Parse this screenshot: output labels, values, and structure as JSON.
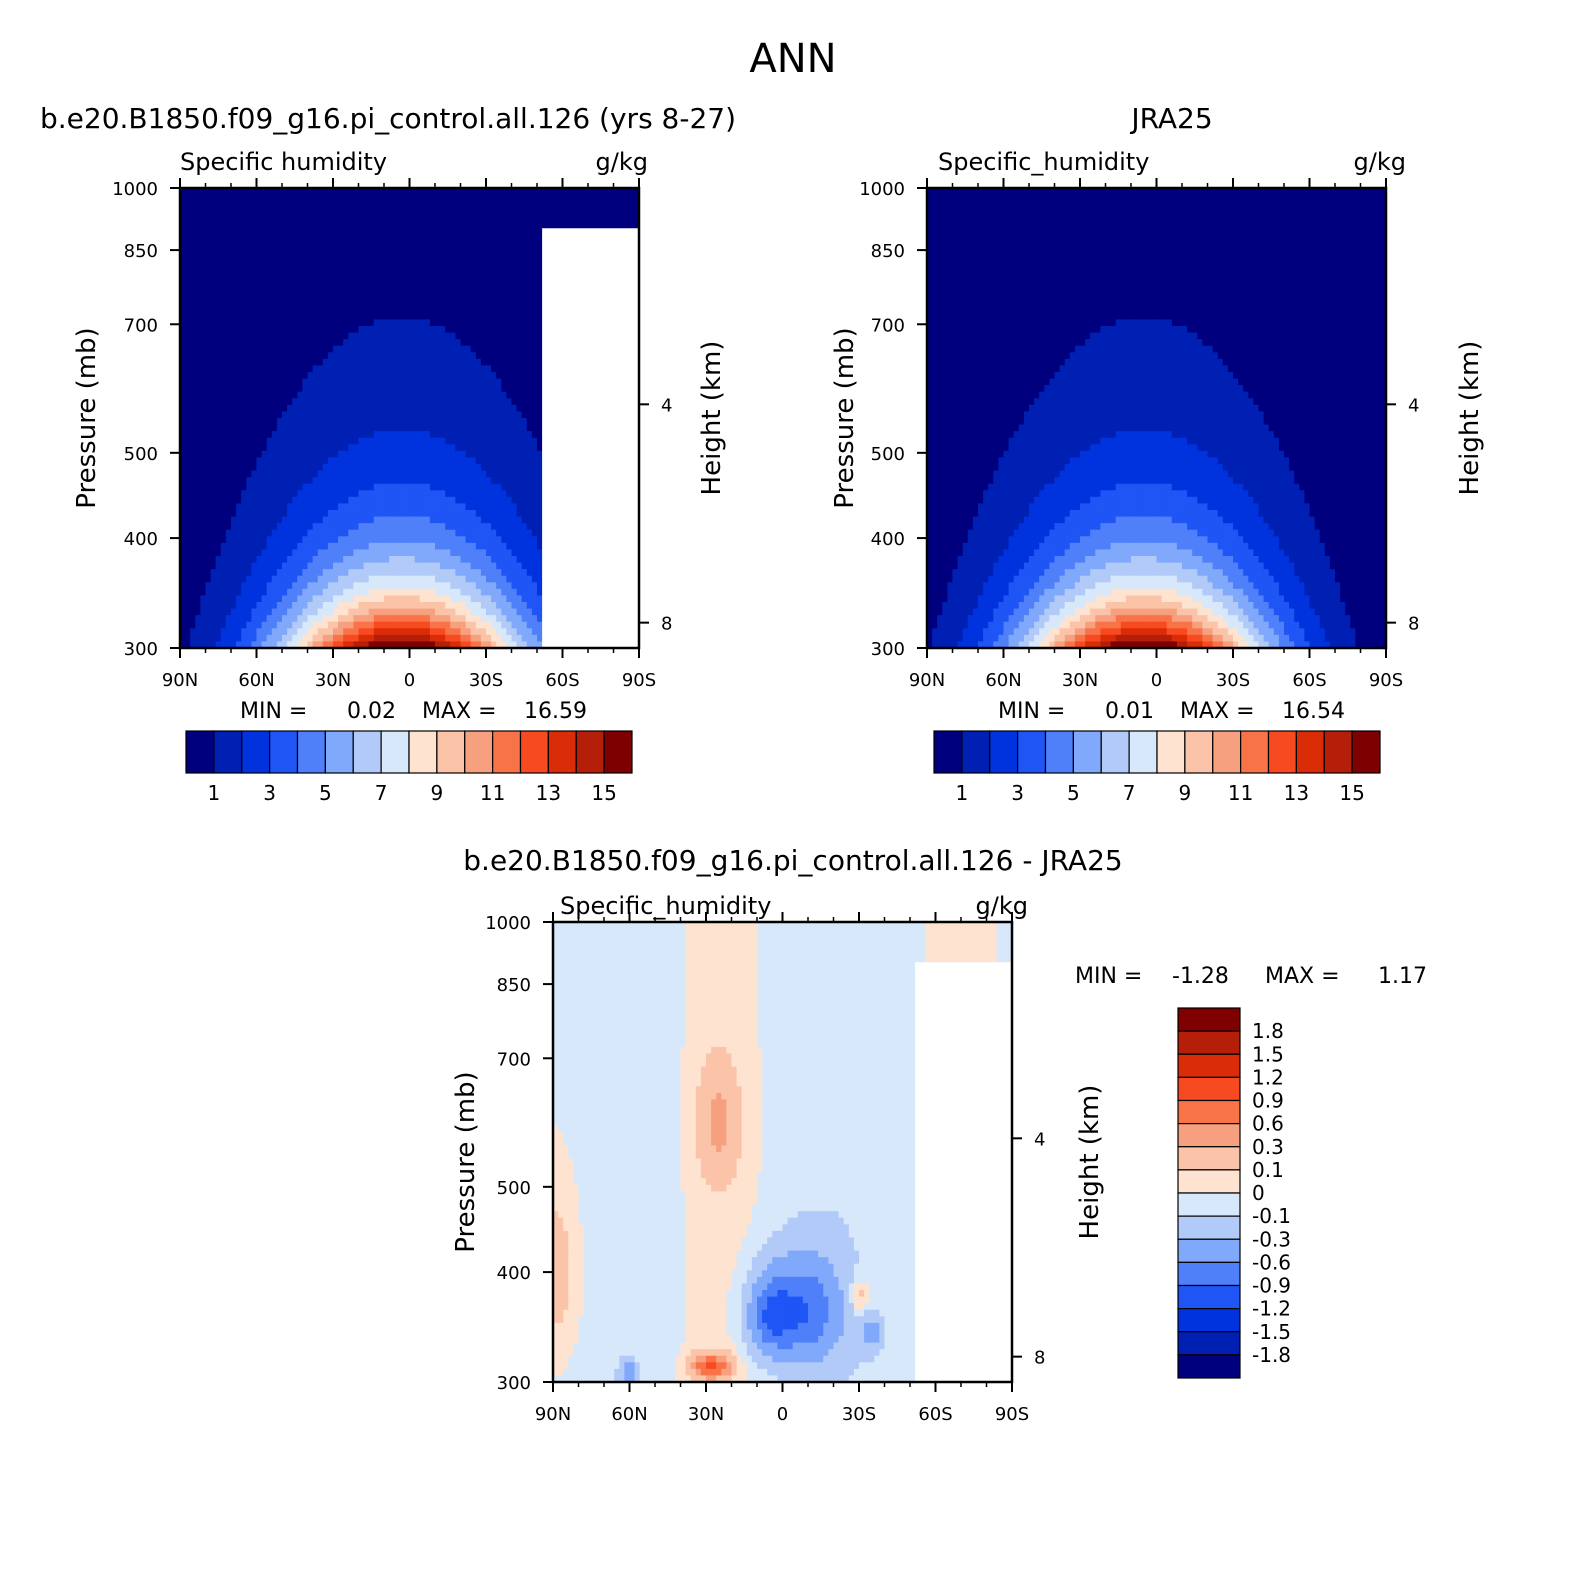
{
  "figure": {
    "main_title": "ANN",
    "palette": [
      "#00007f",
      "#0020b4",
      "#0033dd",
      "#1f55f5",
      "#4f80fa",
      "#80a8fb",
      "#b2caf8",
      "#d7e8fa",
      "#fde3d0",
      "#fbc4a8",
      "#f7a080",
      "#f87448",
      "#f74a20",
      "#db2c08",
      "#b51e08",
      "#7f0000"
    ]
  },
  "chart_data": [
    {
      "type": "contour",
      "id": "model",
      "title": "b.e20.B1850.f09_g16.pi_control.all.126 (yrs 8-27)",
      "variable": "Specific humidity",
      "units": "g/kg",
      "ylabel": "Pressure (mb)",
      "y2label": "Height (km)",
      "x_ticks": [
        "90N",
        "60N",
        "30N",
        "0",
        "30S",
        "60S",
        "90S"
      ],
      "y_ticks": [
        "300",
        "400",
        "500",
        "700",
        "850",
        "1000"
      ],
      "y2_ticks": [
        "8",
        "4"
      ],
      "xlim": [
        -90,
        90
      ],
      "ylim": [
        1000,
        300
      ],
      "y_scale": "log",
      "stats": {
        "min_label": "MIN =",
        "min": "0.02",
        "max_label": "MAX =",
        "max": "16.59"
      },
      "colorbar": {
        "orientation": "horizontal",
        "levels": [
          1,
          2,
          3,
          4,
          5,
          6,
          7,
          8,
          9,
          10,
          11,
          12,
          13,
          14,
          15
        ],
        "tick_labels": [
          "1",
          "3",
          "5",
          "7",
          "9",
          "11",
          "13",
          "15"
        ]
      },
      "peak": 16.59,
      "missing_below_right": true
    },
    {
      "type": "contour",
      "id": "obs",
      "title": "JRA25",
      "variable": "Specific_humidity",
      "units": "g/kg",
      "ylabel": "Pressure (mb)",
      "y2label": "Height (km)",
      "x_ticks": [
        "90N",
        "60N",
        "30N",
        "0",
        "30S",
        "60S",
        "90S"
      ],
      "y_ticks": [
        "300",
        "400",
        "500",
        "700",
        "850",
        "1000"
      ],
      "y2_ticks": [
        "8",
        "4"
      ],
      "xlim": [
        -90,
        90
      ],
      "ylim": [
        1000,
        300
      ],
      "y_scale": "log",
      "stats": {
        "min_label": "MIN =",
        "min": "0.01",
        "max_label": "MAX =",
        "max": "16.54"
      },
      "colorbar": {
        "orientation": "horizontal",
        "levels": [
          1,
          2,
          3,
          4,
          5,
          6,
          7,
          8,
          9,
          10,
          11,
          12,
          13,
          14,
          15
        ],
        "tick_labels": [
          "1",
          "3",
          "5",
          "7",
          "9",
          "11",
          "13",
          "15"
        ]
      },
      "peak": 16.54
    },
    {
      "type": "contour",
      "id": "diff",
      "title": "b.e20.B1850.f09_g16.pi_control.all.126 - JRA25",
      "variable": "Specific_humidity",
      "units": "g/kg",
      "ylabel": "Pressure (mb)",
      "y2label": "Height (km)",
      "x_ticks": [
        "90N",
        "60N",
        "30N",
        "0",
        "30S",
        "60S",
        "90S"
      ],
      "y_ticks": [
        "300",
        "400",
        "500",
        "700",
        "850",
        "1000"
      ],
      "y2_ticks": [
        "8",
        "4"
      ],
      "xlim": [
        -90,
        90
      ],
      "ylim": [
        1000,
        300
      ],
      "y_scale": "log",
      "stats": {
        "min_label": "MIN =",
        "min": "-1.28",
        "max_label": "MAX =",
        "max": "1.17"
      },
      "colorbar": {
        "orientation": "vertical",
        "levels": [
          -1.8,
          -1.5,
          -1.2,
          -0.9,
          -0.6,
          -0.3,
          -0.1,
          0,
          0.1,
          0.3,
          0.6,
          0.9,
          1.2,
          1.5,
          1.8
        ],
        "tick_labels": [
          "1.8",
          "1.5",
          "1.2",
          "0.9",
          "0.6",
          "0.3",
          "0.1",
          "0",
          "-0.1",
          "-0.3",
          "-0.6",
          "-0.9",
          "-1.2",
          "-1.5",
          "-1.8"
        ]
      }
    }
  ]
}
